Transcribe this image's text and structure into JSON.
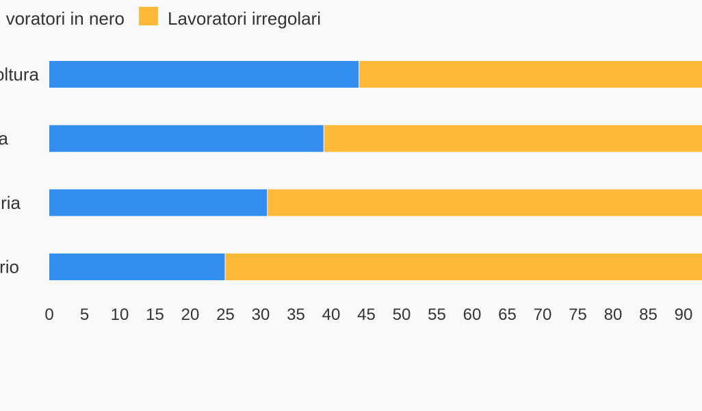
{
  "chart_data": {
    "type": "bar",
    "orientation": "horizontal",
    "stacked": true,
    "categories": [
      "Agricoltura",
      "Edilizia",
      "Manifattura",
      "Terziario"
    ],
    "category_labels_visible": [
      "oltura",
      "a",
      "ria",
      "rio"
    ],
    "series": [
      {
        "name": "Lavoratori in nero",
        "legend_label_visible": "voratori in nero",
        "color": "#338ef0",
        "values": [
          44,
          39,
          31,
          25
        ]
      },
      {
        "name": "Lavoratori irregolari",
        "legend_label_visible": "Lavoratori irregolari",
        "color": "#ffb938",
        "values": [
          56,
          61,
          69,
          75
        ]
      }
    ],
    "xlim": [
      0,
      100
    ],
    "xticks": [
      0,
      5,
      10,
      15,
      20,
      25,
      30,
      35,
      40,
      45,
      50,
      55,
      60,
      65,
      70,
      75,
      80,
      85,
      90
    ],
    "grid": false,
    "legend_position": "top-left",
    "title": "",
    "xlabel": "",
    "ylabel": ""
  }
}
